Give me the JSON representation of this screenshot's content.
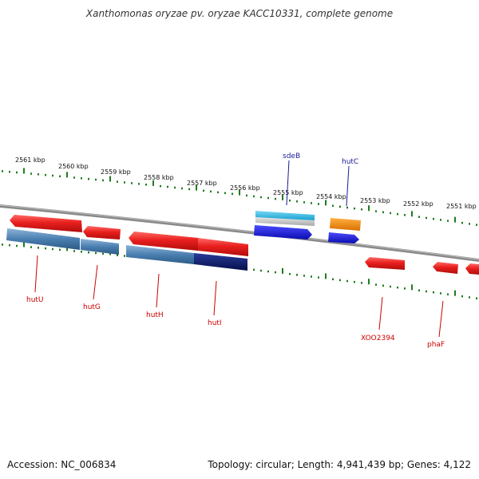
{
  "title": "Xanthomonas oryzae pv. oryzae KACC10331, complete genome",
  "footer": {
    "accession": "Accession: NC_006834",
    "topology": "Topology: circular; Length: 4,941,439 bp; Genes: 4,122"
  },
  "colors": {
    "backbone": "#8a8a8a",
    "tick": "#1f7a1f",
    "red_feature": "#e8201e",
    "steel_feature": "#4a7fb0",
    "navy_feature": "#0a1a6a",
    "cyan_feature": "#28b6e0",
    "blue_feature": "#1b1bd8",
    "orange_feature": "#f08800",
    "label_red": "#cc0000",
    "label_blue": "#1a1a99"
  },
  "kbp_labels": [
    "2561 kbp",
    "2560 kbp",
    "2559 kbp",
    "2558 kbp",
    "2557 kbp",
    "2556 kbp",
    "2555 kbp",
    "2554 kbp",
    "2553 kbp",
    "2552 kbp",
    "2551 kbp"
  ],
  "genes_top": [
    {
      "label": "sdeB",
      "color": "#1a1a99"
    },
    {
      "label": "hutC",
      "color": "#1a1a99"
    }
  ],
  "genes_bottom": [
    {
      "label": "hutU",
      "color": "#cc0000"
    },
    {
      "label": "hutG",
      "color": "#cc0000"
    },
    {
      "label": "hutH",
      "color": "#cc0000"
    },
    {
      "label": "hutI",
      "color": "#cc0000"
    },
    {
      "label": "XOO2394",
      "color": "#cc0000"
    },
    {
      "label": "phaF",
      "color": "#cc0000"
    }
  ]
}
